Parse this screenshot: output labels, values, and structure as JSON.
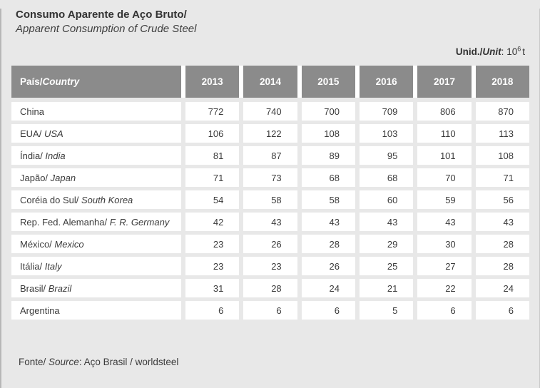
{
  "title": {
    "pt": "Consumo Aparente de Aço Bruto/",
    "en": "Apparent Consumption of Crude Steel"
  },
  "unit": {
    "label_pt": "Unid./",
    "label_en": "Unit",
    "sep": ": ",
    "base": "10",
    "exp": "6",
    "suffix": "t"
  },
  "table": {
    "country_header": {
      "pt": "País/",
      "en": "Country"
    },
    "years": [
      "2013",
      "2014",
      "2015",
      "2016",
      "2017",
      "2018"
    ],
    "rows": [
      {
        "pt": "China",
        "en": "",
        "values": [
          772,
          740,
          700,
          709,
          806,
          870
        ]
      },
      {
        "pt": "EUA/",
        "en": " USA",
        "values": [
          106,
          122,
          108,
          103,
          110,
          113
        ]
      },
      {
        "pt": "Índia/",
        "en": " India",
        "values": [
          81,
          87,
          89,
          95,
          101,
          108
        ]
      },
      {
        "pt": "Japão/",
        "en": " Japan",
        "values": [
          71,
          73,
          68,
          68,
          70,
          71
        ]
      },
      {
        "pt": "Coréia do Sul/",
        "en": " South Korea",
        "values": [
          54,
          58,
          58,
          60,
          59,
          56
        ]
      },
      {
        "pt": "Rep. Fed. Alemanha/",
        "en": " F. R. Germany",
        "values": [
          42,
          43,
          43,
          43,
          43,
          43
        ]
      },
      {
        "pt": "México/",
        "en": " Mexico",
        "values": [
          23,
          26,
          28,
          29,
          30,
          28
        ]
      },
      {
        "pt": "Itália/",
        "en": " Italy",
        "values": [
          23,
          23,
          26,
          25,
          27,
          28
        ]
      },
      {
        "pt": "Brasil/",
        "en": " Brazil",
        "values": [
          31,
          28,
          24,
          21,
          22,
          24
        ]
      },
      {
        "pt": "Argentina",
        "en": "",
        "values": [
          6,
          6,
          6,
          5,
          6,
          6
        ]
      }
    ]
  },
  "footer": {
    "pt": "Fonte/",
    "en": " Source",
    "rest": ": Aço Brasil / worldsteel"
  },
  "colors": {
    "page_background": "#e8e8e8",
    "header_background": "#8b8b8b",
    "header_text": "#ffffff",
    "cell_background": "#ffffff",
    "body_text": "#3b3b3b"
  }
}
